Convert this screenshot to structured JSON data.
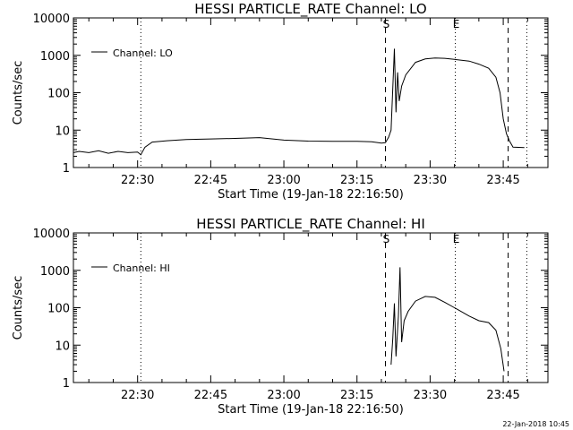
{
  "footer": {
    "timestamp": "22-Jan-2018 10:45"
  },
  "chart_data": [
    {
      "type": "line",
      "title": "HESSI PARTICLE_RATE Channel: LO",
      "xlabel": "Start Time (19-Jan-18 22:16:50)",
      "ylabel": "Counts/sec",
      "yscale": "log",
      "ylim": [
        1,
        10000
      ],
      "yticks": [
        1,
        10,
        100,
        1000,
        10000
      ],
      "yticklabels": [
        "1",
        "10",
        "100",
        "1000",
        "10000"
      ],
      "xlim": [
        "22:16:50",
        "23:54:10"
      ],
      "xticks": [
        "22:30",
        "22:45",
        "23:00",
        "23:15",
        "23:30",
        "23:45"
      ],
      "legend": {
        "label": "Channel: LO",
        "position": "top-left"
      },
      "markers": [
        {
          "label": "S",
          "time": "23:20:50",
          "style": "dashed"
        },
        {
          "label": "E",
          "time": "23:35:10",
          "style": "dotted"
        }
      ],
      "extra_lines": [
        {
          "time": "22:30:40",
          "style": "dotted"
        },
        {
          "time": "23:46:00",
          "style": "dashed"
        },
        {
          "time": "23:49:50",
          "style": "dotted"
        }
      ],
      "series": [
        {
          "name": "Channel: LO",
          "points": [
            [
              "22:16:50",
              2.5
            ],
            [
              "22:18:00",
              2.7
            ],
            [
              "22:20:00",
              2.5
            ],
            [
              "22:22:00",
              2.8
            ],
            [
              "22:24:00",
              2.4
            ],
            [
              "22:26:00",
              2.7
            ],
            [
              "22:28:00",
              2.5
            ],
            [
              "22:30:00",
              2.6
            ],
            [
              "22:30:40",
              2.2
            ],
            [
              "22:31:30",
              3.5
            ],
            [
              "22:33:00",
              4.8
            ],
            [
              "22:36:00",
              5.2
            ],
            [
              "22:40:00",
              5.6
            ],
            [
              "22:45:00",
              5.8
            ],
            [
              "22:50:00",
              6.0
            ],
            [
              "22:55:00",
              6.3
            ],
            [
              "23:00:00",
              5.4
            ],
            [
              "23:05:00",
              5.1
            ],
            [
              "23:10:00",
              5.0
            ],
            [
              "23:15:00",
              5.0
            ],
            [
              "23:18:00",
              4.9
            ],
            [
              "23:20:00",
              4.5
            ],
            [
              "23:20:50",
              4.6
            ],
            [
              "23:21:30",
              6.5
            ],
            [
              "23:22:00",
              10
            ],
            [
              "23:22:40",
              1500
            ],
            [
              "23:23:00",
              30
            ],
            [
              "23:23:20",
              350
            ],
            [
              "23:23:40",
              60
            ],
            [
              "23:24:10",
              150
            ],
            [
              "23:25:00",
              300
            ],
            [
              "23:27:00",
              650
            ],
            [
              "23:29:00",
              800
            ],
            [
              "23:31:00",
              850
            ],
            [
              "23:33:00",
              830
            ],
            [
              "23:35:00",
              780
            ],
            [
              "23:38:00",
              700
            ],
            [
              "23:40:00",
              580
            ],
            [
              "23:42:00",
              450
            ],
            [
              "23:43:30",
              260
            ],
            [
              "23:44:20",
              100
            ],
            [
              "23:45:00",
              20
            ],
            [
              "23:45:40",
              8
            ],
            [
              "23:46:20",
              5
            ],
            [
              "23:47:00",
              3.5
            ],
            [
              "23:49:20",
              3.4
            ]
          ]
        }
      ]
    },
    {
      "type": "line",
      "title": "HESSI PARTICLE_RATE Channel: HI",
      "xlabel": "Start Time (19-Jan-18 22:16:50)",
      "ylabel": "Counts/sec",
      "yscale": "log",
      "ylim": [
        1,
        10000
      ],
      "yticks": [
        1,
        10,
        100,
        1000,
        10000
      ],
      "yticklabels": [
        "1",
        "10",
        "100",
        "1000",
        "10000"
      ],
      "xlim": [
        "22:16:50",
        "23:54:10"
      ],
      "xticks": [
        "22:30",
        "22:45",
        "23:00",
        "23:15",
        "23:30",
        "23:45"
      ],
      "legend": {
        "label": "Channel: HI",
        "position": "top-left"
      },
      "markers": [
        {
          "label": "S",
          "time": "23:20:50",
          "style": "dashed"
        },
        {
          "label": "E",
          "time": "23:35:10",
          "style": "dotted"
        }
      ],
      "extra_lines": [
        {
          "time": "22:30:40",
          "style": "dotted"
        },
        {
          "time": "23:46:00",
          "style": "dashed"
        },
        {
          "time": "23:49:50",
          "style": "dotted"
        }
      ],
      "series": [
        {
          "name": "Channel: HI",
          "points": [
            [
              "23:22:00",
              3
            ],
            [
              "23:22:20",
              15
            ],
            [
              "23:22:40",
              130
            ],
            [
              "23:23:00",
              5
            ],
            [
              "23:23:30",
              60
            ],
            [
              "23:23:50",
              1200
            ],
            [
              "23:24:10",
              12
            ],
            [
              "23:24:40",
              45
            ],
            [
              "23:25:30",
              80
            ],
            [
              "23:27:00",
              150
            ],
            [
              "23:29:00",
              200
            ],
            [
              "23:31:00",
              190
            ],
            [
              "23:33:00",
              140
            ],
            [
              "23:35:00",
              100
            ],
            [
              "23:38:00",
              60
            ],
            [
              "23:40:00",
              45
            ],
            [
              "23:42:00",
              40
            ],
            [
              "23:43:30",
              25
            ],
            [
              "23:44:30",
              8
            ],
            [
              "23:45:10",
              2
            ]
          ]
        }
      ]
    }
  ]
}
